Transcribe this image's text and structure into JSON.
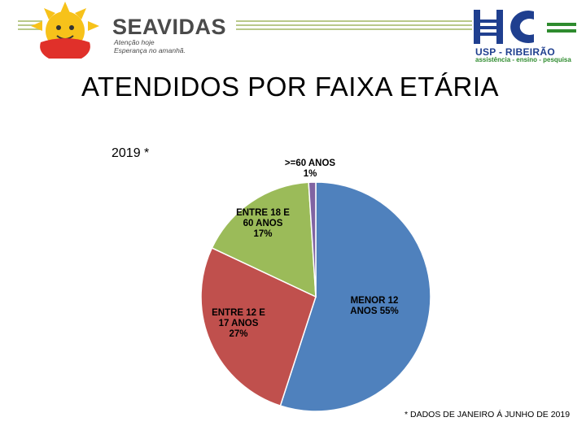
{
  "header": {
    "brand_name": "SEAVIDAS",
    "brand_tagline_1": "Atenção hoje",
    "brand_tagline_2": "Esperança no amanhã.",
    "institution_line_1": "USP - RIBEIRÃO",
    "institution_line_2": "assistência - ensino - pesquisa",
    "institution_logo_icon": "hc-logo-icon",
    "brand_logo_icon": "sun-logo-icon"
  },
  "chart_data": {
    "type": "pie",
    "title": "ATENDIDOS POR FAIXA ETÁRIA",
    "subtitle": "2019 *",
    "slices": [
      {
        "name": "MENOR 12 ANOS",
        "value": 55,
        "label": "MENOR 12 ANOS 55%",
        "color": "#4f81bd"
      },
      {
        "name": "ENTRE 12 E 17 ANOS",
        "value": 27,
        "label": "ENTRE 12 E 17 ANOS 27%",
        "color": "#c0504d"
      },
      {
        "name": "ENTRE 18 E 60 ANOS",
        "value": 17,
        "label": "ENTRE 18 E 60 ANOS 17%",
        "color": "#9bbb59"
      },
      {
        "name": ">=60 ANOS",
        "value": 1,
        "label": ">=60 ANOS 1%",
        "color": "#8064a2"
      }
    ],
    "footnote": "* DADOS DE JANEIRO Á JUNHO DE 2019"
  }
}
